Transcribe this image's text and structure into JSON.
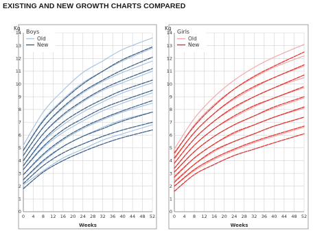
{
  "title": "EXISTING AND NEW GROWTH CHARTS COMPARED",
  "chart_data": [
    {
      "type": "line",
      "panel_title": "Boys",
      "ylabel": "Kg",
      "xlabel": "Weeks",
      "ylim": [
        0,
        14
      ],
      "xlim": [
        0,
        52
      ],
      "xticks": [
        0,
        4,
        8,
        12,
        16,
        20,
        24,
        28,
        32,
        36,
        40,
        44,
        48,
        52
      ],
      "yticks": [
        0,
        1,
        2,
        3,
        4,
        5,
        6,
        7,
        8,
        9,
        10,
        11,
        12,
        13,
        14
      ],
      "grid": true,
      "legend": {
        "position": "top-left",
        "entries": [
          "Old",
          "New"
        ]
      },
      "colors": {
        "old": "#a8c4df",
        "new": "#3d5f86"
      },
      "series": [
        {
          "name": "Old",
          "x": [
            0,
            8,
            16,
            24,
            32,
            40,
            52
          ],
          "curves": [
            [
              2.1,
              3.2,
              4.2,
              4.9,
              5.6,
              6.1,
              6.8
            ],
            [
              2.5,
              3.9,
              5.1,
              5.9,
              6.6,
              7.2,
              7.8
            ],
            [
              2.9,
              4.4,
              5.6,
              6.5,
              7.2,
              7.8,
              8.5
            ],
            [
              3.3,
              5.0,
              6.2,
              7.1,
              7.9,
              8.5,
              9.3
            ],
            [
              3.6,
              5.5,
              6.8,
              7.8,
              8.6,
              9.3,
              10.1
            ],
            [
              4.0,
              6.1,
              7.5,
              8.6,
              9.5,
              10.1,
              11.0
            ],
            [
              4.4,
              6.6,
              8.1,
              9.3,
              10.2,
              10.9,
              11.8
            ],
            [
              4.8,
              7.2,
              8.8,
              10.1,
              11.0,
              11.8,
              12.8
            ],
            [
              5.2,
              7.8,
              9.5,
              10.9,
              11.8,
              12.7,
              13.6
            ]
          ]
        },
        {
          "name": "New",
          "x": [
            0,
            8,
            16,
            24,
            32,
            40,
            52
          ],
          "curves": [
            [
              1.8,
              3.1,
              4.0,
              4.7,
              5.3,
              5.8,
              6.4
            ],
            [
              2.2,
              3.6,
              4.6,
              5.3,
              5.9,
              6.4,
              7.0
            ],
            [
              2.5,
              4.0,
              5.1,
              5.9,
              6.5,
              7.1,
              7.8
            ],
            [
              2.9,
              4.5,
              5.7,
              6.6,
              7.3,
              7.9,
              8.7
            ],
            [
              3.3,
              5.1,
              6.4,
              7.3,
              8.1,
              8.7,
              9.5
            ],
            [
              3.6,
              5.6,
              7.0,
              8.0,
              8.8,
              9.5,
              10.3
            ],
            [
              4.0,
              6.1,
              7.6,
              8.7,
              9.6,
              10.3,
              11.2
            ],
            [
              4.4,
              6.6,
              8.2,
              9.4,
              10.3,
              11.1,
              12.1
            ],
            [
              4.8,
              7.1,
              8.7,
              10.0,
              11.0,
              11.9,
              12.9
            ]
          ]
        }
      ]
    },
    {
      "type": "line",
      "panel_title": "Girls",
      "ylabel": "Kg",
      "xlabel": "Weeks",
      "ylim": [
        0,
        14
      ],
      "xlim": [
        0,
        52
      ],
      "xticks": [
        0,
        4,
        8,
        12,
        16,
        20,
        24,
        28,
        32,
        36,
        40,
        44,
        48,
        52
      ],
      "yticks": [
        0,
        1,
        2,
        3,
        4,
        5,
        6,
        7,
        8,
        9,
        10,
        11,
        12,
        13,
        14
      ],
      "grid": true,
      "legend": {
        "position": "top-left",
        "entries": [
          "Old",
          "New"
        ]
      },
      "colors": {
        "old": "#f4a9a9",
        "new": "#e0312d"
      },
      "series": [
        {
          "name": "Old",
          "x": [
            0,
            8,
            16,
            24,
            32,
            40,
            52
          ],
          "curves": [
            [
              2.0,
              3.2,
              4.1,
              4.8,
              5.4,
              5.9,
              6.6
            ],
            [
              2.4,
              3.7,
              4.7,
              5.5,
              6.1,
              6.7,
              7.4
            ],
            [
              2.8,
              4.2,
              5.3,
              6.1,
              6.8,
              7.4,
              8.1
            ],
            [
              3.1,
              4.7,
              5.9,
              6.8,
              7.5,
              8.1,
              8.9
            ],
            [
              3.4,
              5.2,
              6.5,
              7.4,
              8.2,
              8.9,
              9.7
            ],
            [
              3.8,
              5.7,
              7.1,
              8.1,
              9.0,
              9.7,
              10.5
            ],
            [
              4.1,
              6.2,
              7.7,
              8.8,
              9.7,
              10.5,
              11.4
            ],
            [
              4.5,
              6.8,
              8.4,
              9.6,
              10.5,
              11.3,
              12.2
            ],
            [
              4.9,
              7.3,
              9.0,
              10.3,
              11.3,
              12.1,
              13.1
            ]
          ]
        },
        {
          "name": "New",
          "x": [
            0,
            8,
            16,
            24,
            32,
            40,
            52
          ],
          "curves": [
            [
              1.6,
              2.9,
              3.7,
              4.4,
              4.9,
              5.4,
              6.1
            ],
            [
              2.0,
              3.3,
              4.2,
              4.9,
              5.5,
              6.0,
              6.7
            ],
            [
              2.3,
              3.7,
              4.8,
              5.5,
              6.1,
              6.7,
              7.4
            ],
            [
              2.7,
              4.2,
              5.3,
              6.2,
              6.8,
              7.4,
              8.2
            ],
            [
              3.1,
              4.7,
              5.9,
              6.8,
              7.5,
              8.2,
              9.0
            ],
            [
              3.4,
              5.2,
              6.5,
              7.5,
              8.3,
              8.9,
              9.8
            ],
            [
              3.8,
              5.7,
              7.1,
              8.2,
              9.0,
              9.7,
              10.7
            ],
            [
              4.2,
              6.2,
              7.7,
              8.9,
              9.8,
              10.5,
              11.5
            ],
            [
              4.6,
              6.7,
              8.3,
              9.6,
              10.6,
              11.4,
              12.5
            ]
          ]
        }
      ]
    }
  ]
}
